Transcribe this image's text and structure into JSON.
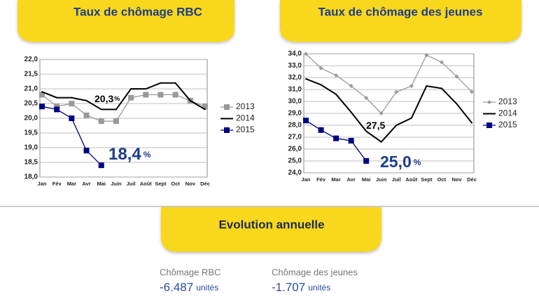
{
  "chart_data": [
    {
      "type": "line",
      "title": "Taux de chômage RBC",
      "categories": [
        "Jan",
        "Fév",
        "Mar",
        "Avr",
        "Mai",
        "Juin",
        "Juil",
        "Août",
        "Sept",
        "Oct",
        "Nov",
        "Déc"
      ],
      "series": [
        {
          "name": "2013",
          "color": "#999999",
          "marker": "square",
          "values": [
            20.8,
            20.4,
            20.5,
            20.1,
            19.9,
            19.9,
            20.7,
            20.8,
            20.8,
            20.8,
            20.6,
            20.4
          ]
        },
        {
          "name": "2014",
          "color": "#000000",
          "marker": "none",
          "values": [
            20.9,
            20.7,
            20.7,
            20.6,
            20.3,
            20.3,
            21.0,
            21.0,
            21.2,
            21.2,
            20.6,
            20.3
          ]
        },
        {
          "name": "2015",
          "color": "#000080",
          "marker": "square",
          "values": [
            20.4,
            20.3,
            20.0,
            18.9,
            18.4,
            null,
            null,
            null,
            null,
            null,
            null,
            null
          ]
        }
      ],
      "ylim": [
        18,
        22
      ],
      "yticks": [
        {
          "value": 18,
          "label": "18,0"
        },
        {
          "value": 18.5,
          "label": "18,5"
        },
        {
          "value": 19,
          "label": "19,0"
        },
        {
          "value": 19.5,
          "label": "19,5"
        },
        {
          "value": 20,
          "label": "20,0"
        },
        {
          "value": 20.5,
          "label": "20,5"
        },
        {
          "value": 21,
          "label": "21,0"
        },
        {
          "value": 21.5,
          "label": "21,5"
        },
        {
          "value": 22,
          "label": "22,0"
        }
      ],
      "grid": true,
      "legend": "right",
      "annotations": [
        {
          "text": "20,3",
          "unit": "%",
          "color": "#000000"
        },
        {
          "text": "18,4",
          "unit": "%",
          "color": "#1c3c8c"
        }
      ]
    },
    {
      "type": "line",
      "title": "Taux de chômage des jeunes",
      "categories": [
        "Jan",
        "Fév",
        "Mar",
        "Avr",
        "Mai",
        "Juin",
        "Juil",
        "Août",
        "Sept",
        "Oct",
        "Nov",
        "Déc"
      ],
      "series": [
        {
          "name": "2013",
          "color": "#999999",
          "marker": "diamond",
          "values": [
            34.0,
            32.8,
            32.2,
            31.3,
            30.3,
            29.0,
            30.8,
            31.3,
            33.9,
            33.3,
            32.1,
            30.8
          ]
        },
        {
          "name": "2014",
          "color": "#000000",
          "marker": "none",
          "values": [
            31.9,
            31.4,
            30.6,
            29.1,
            27.5,
            26.6,
            28.0,
            28.6,
            31.3,
            31.1,
            29.8,
            28.2
          ]
        },
        {
          "name": "2015",
          "color": "#000080",
          "marker": "square",
          "values": [
            28.4,
            27.6,
            26.9,
            26.7,
            25.0,
            null,
            null,
            null,
            null,
            null,
            null,
            null
          ]
        }
      ],
      "ylim": [
        24,
        34
      ],
      "yticks": [
        {
          "value": 24,
          "label": "24,0"
        },
        {
          "value": 25,
          "label": "25,0"
        },
        {
          "value": 26,
          "label": "26,0"
        },
        {
          "value": 27,
          "label": "27,0"
        },
        {
          "value": 28,
          "label": "28,0"
        },
        {
          "value": 29,
          "label": "29,0"
        },
        {
          "value": 30,
          "label": "30,0"
        },
        {
          "value": 31,
          "label": "31,0"
        },
        {
          "value": 32,
          "label": "32,0"
        },
        {
          "value": 33,
          "label": "33,0"
        },
        {
          "value": 34,
          "label": "34,0"
        }
      ],
      "grid": true,
      "legend": "right",
      "annotations": [
        {
          "text": "27,5",
          "unit": null,
          "color": "#000000"
        },
        {
          "text": "25,0",
          "unit": "%",
          "color": "#1c3c8c"
        }
      ]
    }
  ],
  "summary": {
    "title": "Evolution annuelle",
    "items": [
      {
        "label": "Chômage RBC",
        "value": "-6.487",
        "unit": "unités"
      },
      {
        "label": "Chômage des jeunes",
        "value": "-1.707",
        "unit": "unités"
      }
    ]
  }
}
